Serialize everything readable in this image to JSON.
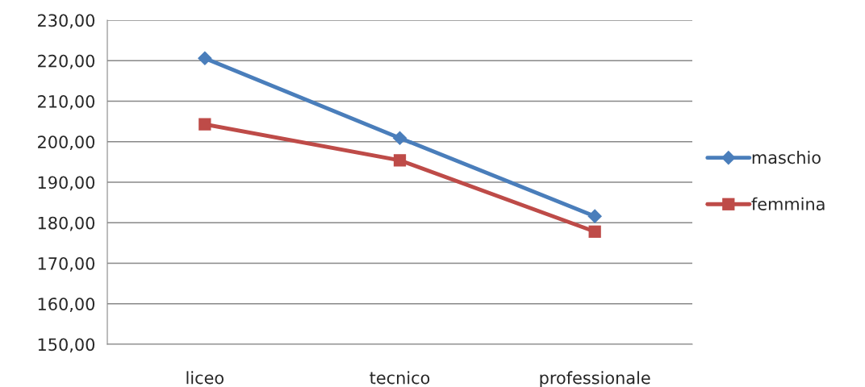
{
  "chart_data": {
    "type": "line",
    "categories": [
      "liceo",
      "tecnico",
      "professionale"
    ],
    "series": [
      {
        "name": "maschio",
        "color": "#4a7ebb",
        "marker": "diamond",
        "values": [
          220.6,
          200.9,
          181.6
        ]
      },
      {
        "name": "femmina",
        "color": "#be4b48",
        "marker": "square",
        "values": [
          204.3,
          195.4,
          177.8
        ]
      }
    ],
    "ylim": [
      150,
      230
    ],
    "yticks": [
      {
        "value": 150,
        "label": "150,00"
      },
      {
        "value": 160,
        "label": "160,00"
      },
      {
        "value": 170,
        "label": "170,00"
      },
      {
        "value": 180,
        "label": "180,00"
      },
      {
        "value": 190,
        "label": "190,00"
      },
      {
        "value": 200,
        "label": "200,00"
      },
      {
        "value": 210,
        "label": "210,00"
      },
      {
        "value": 220,
        "label": "220,00"
      },
      {
        "value": 230,
        "label": "230,00"
      }
    ],
    "grid": "y",
    "legend": "right",
    "line_style": "solid"
  }
}
